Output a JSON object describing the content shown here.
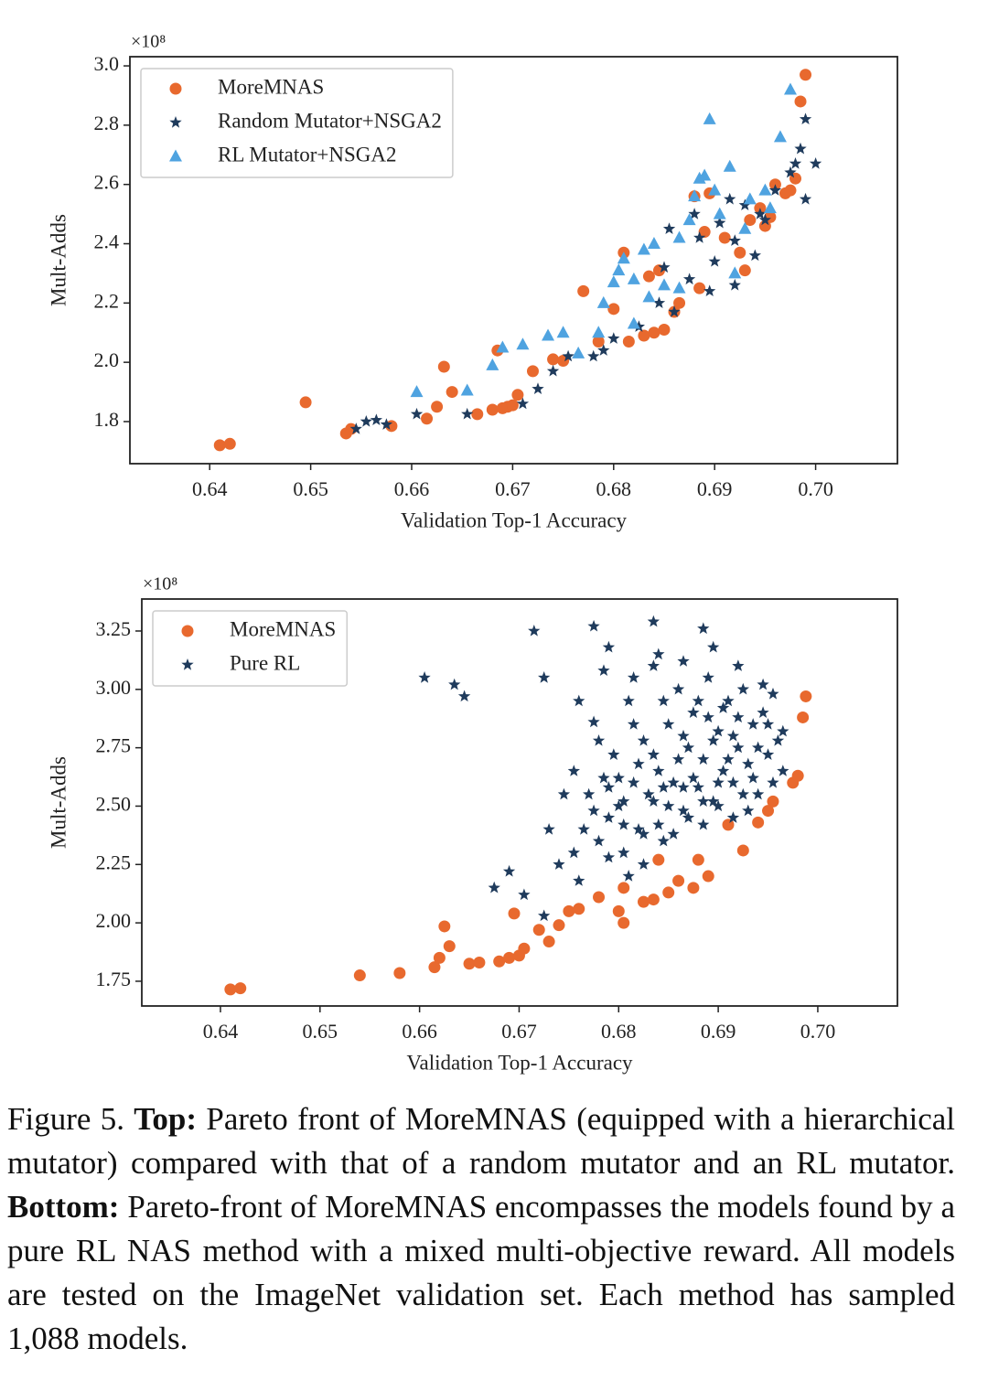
{
  "chart_data": [
    {
      "type": "scatter",
      "y_multiplier": "×10⁸",
      "xlabel": "Validation Top-1 Accuracy",
      "ylabel": "Mult-Adds",
      "xlim": [
        0.6321,
        0.7081
      ],
      "ylim": [
        1.658,
        3.031
      ],
      "xticks": [
        0.64,
        0.65,
        0.66,
        0.67,
        0.68,
        0.69,
        {
          "value": 0.7,
          "label": "0.70"
        }
      ],
      "yticks": [
        1.8,
        {
          "value": 2,
          "label": "2.0"
        },
        2.2,
        2.4,
        2.6,
        2.8,
        {
          "value": 3,
          "label": "3.0"
        }
      ],
      "legend": "upper left",
      "series": [
        {
          "name": "MoreMNAS",
          "color": "#e8692e",
          "marker": "circle",
          "x": [
            0.641,
            0.642,
            0.6495,
            0.6535,
            0.654,
            0.658,
            0.6615,
            0.6625,
            0.6632,
            0.664,
            0.6665,
            0.668,
            0.6685,
            0.669,
            0.6695,
            0.67,
            0.6705,
            0.672,
            0.674,
            0.675,
            0.677,
            0.6785,
            0.68,
            0.681,
            0.6815,
            0.683,
            0.684,
            0.6835,
            0.6845,
            0.685,
            0.686,
            0.6865,
            0.688,
            0.6885,
            0.689,
            0.6895,
            0.691,
            0.6925,
            0.693,
            0.6935,
            0.6945,
            0.695,
            0.6955,
            0.696,
            0.697,
            0.6975,
            0.698,
            0.6985,
            0.699
          ],
          "values": [
            1.72,
            1.725,
            1.865,
            1.76,
            1.775,
            1.785,
            1.81,
            1.85,
            1.985,
            1.9,
            1.825,
            1.84,
            2.04,
            1.845,
            1.85,
            1.855,
            1.89,
            1.97,
            2.01,
            2.005,
            2.24,
            2.07,
            2.18,
            2.37,
            2.07,
            2.09,
            2.1,
            2.29,
            2.31,
            2.11,
            2.17,
            2.2,
            2.56,
            2.25,
            2.44,
            2.57,
            2.42,
            2.37,
            2.31,
            2.48,
            2.52,
            2.46,
            2.49,
            2.6,
            2.57,
            2.58,
            2.62,
            2.88,
            2.97
          ]
        },
        {
          "name": "Random Mutator+NSGA2",
          "color": "#1f3b5c",
          "marker": "star",
          "x": [
            0.6545,
            0.6555,
            0.6565,
            0.6575,
            0.6605,
            0.6655,
            0.671,
            0.6725,
            0.674,
            0.6755,
            0.678,
            0.679,
            0.68,
            0.6825,
            0.6845,
            0.685,
            0.686,
            0.6875,
            0.688,
            0.6885,
            0.6895,
            0.69,
            0.6905,
            0.6915,
            0.692,
            0.693,
            0.694,
            0.6945,
            0.695,
            0.696,
            0.6975,
            0.698,
            0.6985,
            0.699,
            0.699,
            0.7,
            0.692,
            0.6855
          ],
          "values": [
            1.775,
            1.8,
            1.805,
            1.79,
            1.825,
            1.825,
            1.86,
            1.91,
            1.97,
            2.02,
            2.02,
            2.04,
            2.08,
            2.12,
            2.2,
            2.32,
            2.17,
            2.28,
            2.5,
            2.42,
            2.24,
            2.34,
            2.47,
            2.55,
            2.41,
            2.53,
            2.36,
            2.5,
            2.48,
            2.58,
            2.64,
            2.67,
            2.72,
            2.82,
            2.55,
            2.67,
            2.26,
            2.45
          ]
        },
        {
          "name": "RL Mutator+NSGA2",
          "color": "#4fa3e0",
          "marker": "triangle",
          "x": [
            0.6605,
            0.6655,
            0.668,
            0.669,
            0.671,
            0.6735,
            0.675,
            0.6765,
            0.6785,
            0.679,
            0.68,
            0.6805,
            0.681,
            0.682,
            0.683,
            0.6835,
            0.684,
            0.6865,
            0.6865,
            0.6875,
            0.688,
            0.6885,
            0.689,
            0.6895,
            0.69,
            0.6915,
            0.692,
            0.693,
            0.6935,
            0.695,
            0.6965,
            0.6975,
            0.6955,
            0.6905,
            0.685,
            0.682
          ],
          "values": [
            1.9,
            1.905,
            1.99,
            2.05,
            2.06,
            2.09,
            2.1,
            2.03,
            2.1,
            2.2,
            2.27,
            2.31,
            2.35,
            2.28,
            2.38,
            2.22,
            2.4,
            2.42,
            2.25,
            2.48,
            2.56,
            2.62,
            2.63,
            2.82,
            2.58,
            2.66,
            2.3,
            2.45,
            2.55,
            2.58,
            2.76,
            2.92,
            2.52,
            2.5,
            2.26,
            2.13
          ]
        }
      ]
    },
    {
      "type": "scatter",
      "y_multiplier": "×10⁸",
      "xlabel": "Validation Top-1 Accuracy",
      "ylabel": "Mult-Adds",
      "xlim": [
        0.6321,
        0.708
      ],
      "ylim": [
        1.644,
        3.387
      ],
      "xticks": [
        0.64,
        0.65,
        0.66,
        0.67,
        0.68,
        0.69,
        {
          "value": 0.7,
          "label": "0.70"
        }
      ],
      "yticks": [
        1.75,
        {
          "value": 2,
          "label": "2.00"
        },
        2.25,
        {
          "value": 2.5,
          "label": "2.50"
        },
        2.75,
        {
          "value": 3,
          "label": "3.00"
        },
        3.25
      ],
      "legend": "upper left",
      "series": [
        {
          "name": "MoreMNAS",
          "color": "#e8692e",
          "marker": "circle",
          "x": [
            0.641,
            0.642,
            0.654,
            0.658,
            0.6615,
            0.662,
            0.6625,
            0.663,
            0.665,
            0.666,
            0.668,
            0.669,
            0.6695,
            0.67,
            0.6705,
            0.672,
            0.673,
            0.674,
            0.675,
            0.676,
            0.678,
            0.68,
            0.6805,
            0.6805,
            0.6825,
            0.6835,
            0.684,
            0.685,
            0.686,
            0.6875,
            0.688,
            0.689,
            0.691,
            0.6925,
            0.694,
            0.695,
            0.6955,
            0.6975,
            0.698,
            0.6985,
            0.6988
          ],
          "values": [
            1.715,
            1.72,
            1.775,
            1.785,
            1.81,
            1.85,
            1.985,
            1.9,
            1.825,
            1.83,
            1.835,
            1.85,
            2.04,
            1.86,
            1.89,
            1.97,
            1.92,
            1.99,
            2.05,
            2.06,
            2.11,
            2.05,
            2.15,
            2.0,
            2.09,
            2.1,
            2.27,
            2.13,
            2.18,
            2.15,
            2.27,
            2.2,
            2.42,
            2.31,
            2.43,
            2.48,
            2.52,
            2.6,
            2.63,
            2.88,
            2.97
          ]
        },
        {
          "name": "Pure RL",
          "color": "#1f3b5c",
          "marker": "star",
          "x": [
            0.6605,
            0.6635,
            0.6645,
            0.6675,
            0.669,
            0.6715,
            0.6725,
            0.6775,
            0.679,
            0.6835,
            0.6885,
            0.6725,
            0.6705,
            0.674,
            0.6755,
            0.676,
            0.6765,
            0.677,
            0.6775,
            0.678,
            0.6785,
            0.679,
            0.6795,
            0.68,
            0.6805,
            0.681,
            0.6815,
            0.682,
            0.6825,
            0.683,
            0.6835,
            0.684,
            0.6845,
            0.685,
            0.6855,
            0.686,
            0.6865,
            0.687,
            0.6875,
            0.688,
            0.6885,
            0.689,
            0.6895,
            0.69,
            0.6905,
            0.691,
            0.6915,
            0.692,
            0.6925,
            0.693,
            0.6935,
            0.694,
            0.6945,
            0.695,
            0.6955,
            0.696,
            0.6965,
            0.679,
            0.681,
            0.6825,
            0.684,
            0.6855,
            0.687,
            0.6885,
            0.69,
            0.6915,
            0.68,
            0.6815,
            0.6835,
            0.685,
            0.6865,
            0.688,
            0.6895,
            0.691,
            0.6925,
            0.694,
            0.6775,
            0.679,
            0.6805,
            0.682,
            0.6835,
            0.6845,
            0.686,
            0.6875,
            0.689,
            0.6905,
            0.692,
            0.6935,
            0.695,
            0.6755,
            0.678,
            0.6815,
            0.684,
            0.6865,
            0.6895,
            0.692,
            0.6945,
            0.673,
            0.6745,
            0.676,
            0.6785,
            0.6805,
            0.6825,
            0.6845,
            0.6865,
            0.6885,
            0.69,
            0.6915,
            0.693,
            0.6955,
            0.6965
          ],
          "values": [
            3.05,
            3.02,
            2.97,
            2.15,
            2.22,
            3.25,
            3.05,
            3.27,
            3.18,
            3.29,
            3.26,
            2.03,
            2.12,
            2.25,
            2.3,
            2.18,
            2.4,
            2.55,
            2.86,
            2.35,
            2.62,
            2.45,
            2.72,
            2.5,
            2.3,
            2.95,
            2.6,
            2.4,
            2.78,
            2.55,
            3.1,
            2.65,
            2.35,
            2.85,
            2.6,
            3.0,
            2.48,
            2.75,
            2.9,
            2.58,
            2.7,
            3.05,
            2.52,
            2.82,
            2.65,
            2.95,
            2.6,
            2.75,
            3.0,
            2.68,
            2.85,
            2.55,
            2.9,
            2.72,
            2.98,
            2.78,
            2.65,
            2.28,
            2.2,
            2.25,
            2.42,
            2.38,
            2.45,
            2.42,
            2.5,
            2.45,
            2.62,
            2.85,
            2.72,
            2.5,
            2.8,
            2.95,
            2.78,
            2.7,
            2.55,
            2.75,
            2.48,
            2.58,
            2.42,
            2.68,
            2.52,
            2.95,
            2.7,
            2.62,
            2.88,
            2.92,
            2.88,
            2.62,
            2.85,
            2.65,
            2.78,
            3.05,
            3.15,
            3.12,
            3.18,
            3.1,
            3.02,
            2.4,
            2.55,
            2.95,
            3.08,
            2.52,
            2.38,
            2.58,
            2.58,
            2.52,
            2.6,
            2.8,
            2.48,
            2.6,
            2.82
          ]
        }
      ]
    }
  ],
  "caption": {
    "label": "Figure 5.",
    "top_label": "Top:",
    "top_text": "Pareto front of MoreMNAS (equipped with a hierarchical mutator) compared with that of a random mutator and an RL mutator.",
    "bottom_label": "Bottom:",
    "bottom_text": "Pareto-front of MoreMNAS encompasses the models found by a pure RL NAS method with a mixed multi-objective reward. All models are tested on the ImageNet validation set. Each method has sampled 1,088 models."
  }
}
